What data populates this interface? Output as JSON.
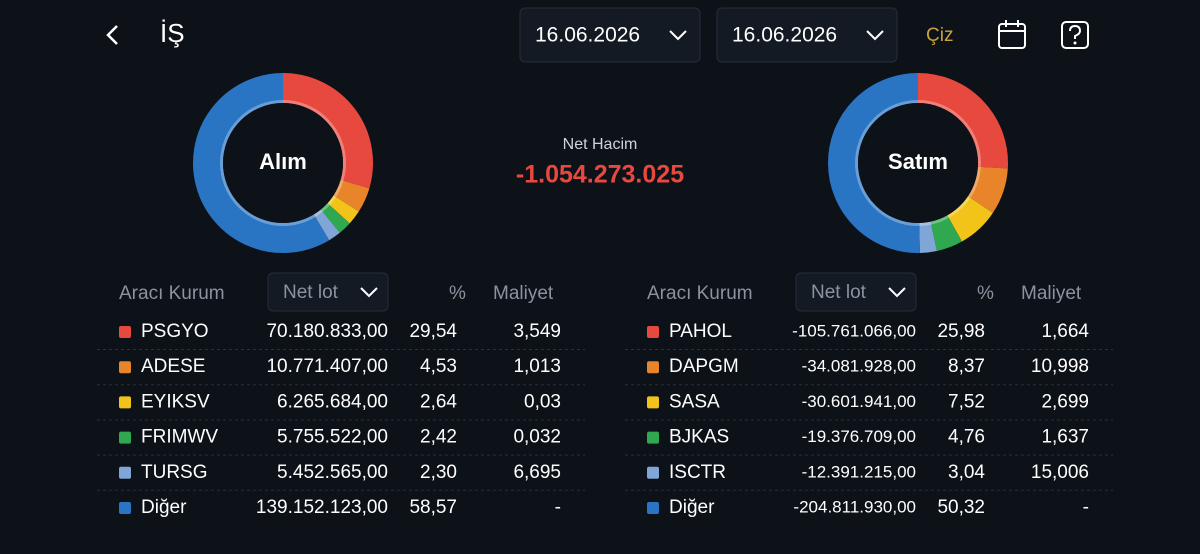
{
  "header": {
    "title": "İŞ",
    "date_from": "16.06.2026",
    "date_to": "16.06.2026",
    "action": "Çiz"
  },
  "summary": {
    "label": "Net Hacim",
    "value": "-1.054.273.025"
  },
  "panels": [
    {
      "center_label": "Alım",
      "columns": [
        "Aracı Kurum",
        "Net lot",
        "%",
        "Maliyet"
      ],
      "rows": [
        {
          "name": "PSGYO",
          "color": "#e8493f",
          "net_lot": "70.180.833,00",
          "share": {
            "value": 29.54,
            "label": "29,54"
          },
          "cost": "3,549"
        },
        {
          "name": "ADESE",
          "color": "#e8842a",
          "net_lot": "10.771.407,00",
          "share": {
            "value": 4.53,
            "label": "4,53"
          },
          "cost": "1,013"
        },
        {
          "name": "EYIKSV",
          "color": "#f2c318",
          "net_lot": "6.265.684,00",
          "share": {
            "value": 2.64,
            "label": "2,64"
          },
          "cost": "0,03"
        },
        {
          "name": "FRIMWV",
          "color": "#2fa84f",
          "net_lot": "5.755.522,00",
          "share": {
            "value": 2.42,
            "label": "2,42"
          },
          "cost": "0,032"
        },
        {
          "name": "TURSG",
          "color": "#7fa6d6",
          "net_lot": "5.452.565,00",
          "share": {
            "value": 2.3,
            "label": "2,30"
          },
          "cost": "6,695"
        },
        {
          "name": "Diğer",
          "color": "#2a74c4",
          "net_lot": "139.152.123,00",
          "share": {
            "value": 58.57,
            "label": "58,57"
          },
          "cost": "-"
        }
      ]
    },
    {
      "center_label": "Satım",
      "columns": [
        "Aracı Kurum",
        "Net lot",
        "%",
        "Maliyet"
      ],
      "rows": [
        {
          "name": "PAHOL",
          "color": "#e8493f",
          "net_lot": "-105.761.066,00",
          "share": {
            "value": 25.98,
            "label": "25,98"
          },
          "cost": "1,664"
        },
        {
          "name": "DAPGM",
          "color": "#e8842a",
          "net_lot": "-34.081.928,00",
          "share": {
            "value": 8.37,
            "label": "8,37"
          },
          "cost": "10,998"
        },
        {
          "name": "SASA",
          "color": "#f2c318",
          "net_lot": "-30.601.941,00",
          "share": {
            "value": 7.52,
            "label": "7,52"
          },
          "cost": "2,699"
        },
        {
          "name": "BJKAS",
          "color": "#2fa84f",
          "net_lot": "-19.376.709,00",
          "share": {
            "value": 4.76,
            "label": "4,76"
          },
          "cost": "1,637"
        },
        {
          "name": "ISCTR",
          "color": "#7fa6d6",
          "net_lot": "-12.391.215,00",
          "share": {
            "value": 3.04,
            "label": "3,04"
          },
          "cost": "15,006"
        },
        {
          "name": "Diğer",
          "color": "#2a74c4",
          "net_lot": "-204.811.930,00",
          "share": {
            "value": 50.32,
            "label": "50,32"
          },
          "cost": "-"
        }
      ]
    }
  ]
}
